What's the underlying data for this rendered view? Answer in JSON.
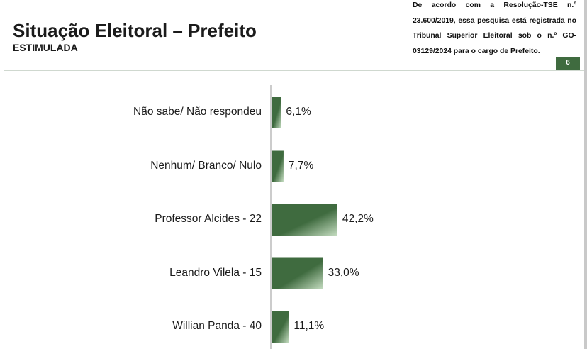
{
  "header": {
    "title": "Situação Eleitoral – Prefeito",
    "subtitle": "ESTIMULADA",
    "note": "De acordo com a Resolução-TSE n.º 23.600/2019, essa pesquisa está registrada no Tribunal Superior Eleitoral sob o n.º GO-03129/2024 para o cargo de Prefeito.",
    "page_number": "6"
  },
  "colors": {
    "bar_dark": "#3f6b3f",
    "bar_light": "#c4dcc0",
    "accent": "#3f6b3f"
  },
  "chart_data": {
    "type": "bar",
    "orientation": "horizontal",
    "categories": [
      "Não sabe/ Não respondeu",
      "Nenhum/ Branco/ Nulo",
      "Professor Alcides - 22",
      "Leandro Vilela - 15",
      "Willian Panda - 40"
    ],
    "values": [
      6.1,
      7.7,
      42.2,
      33.0,
      11.1
    ],
    "value_labels": [
      "6,1%",
      "7,7%",
      "42,2%",
      "33,0%",
      "11,1%"
    ],
    "unit": "%",
    "title": "",
    "xlabel": "",
    "ylabel": "",
    "xlim": [
      0,
      100
    ],
    "grid": false,
    "legend": "none"
  }
}
